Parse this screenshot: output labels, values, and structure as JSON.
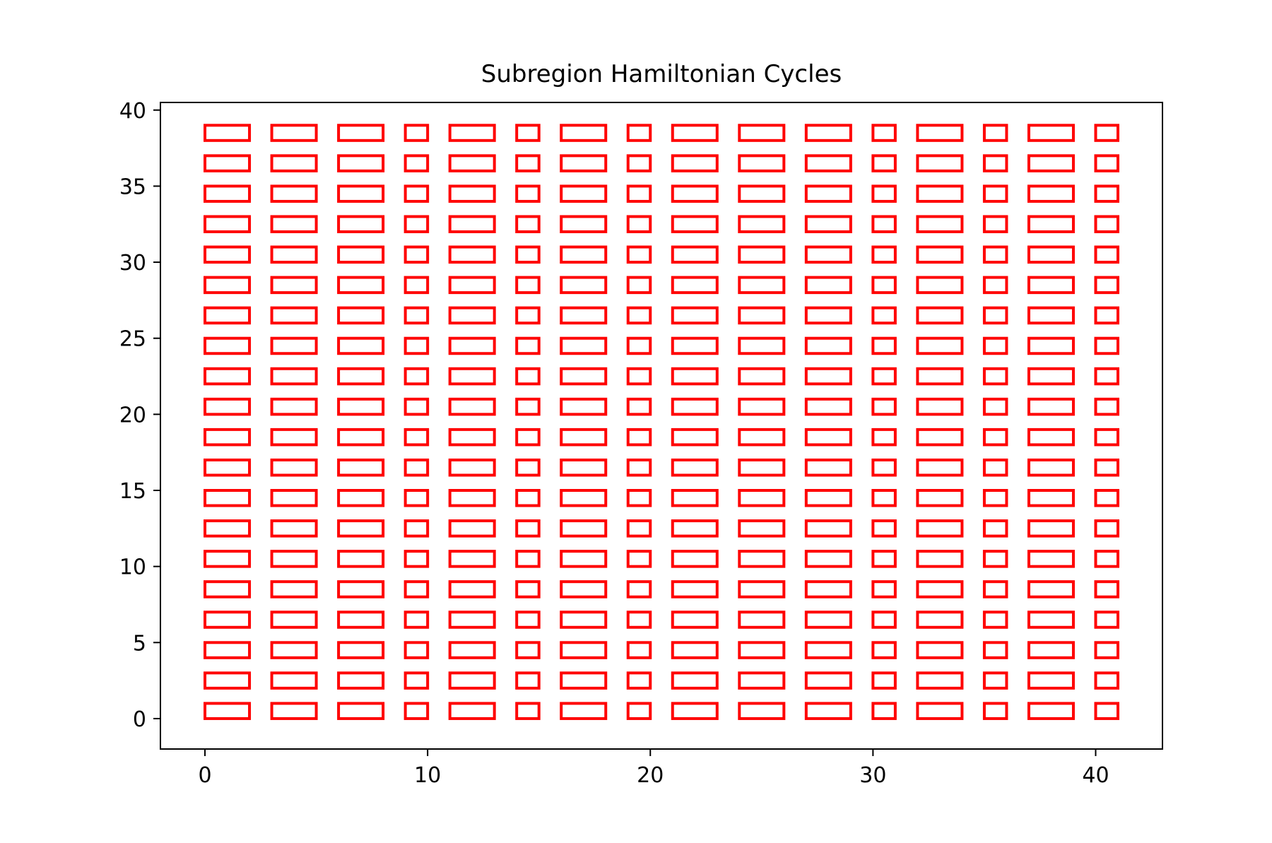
{
  "chart_data": {
    "type": "line",
    "title": "Subregion Hamiltonian Cycles",
    "xlabel": "",
    "ylabel": "",
    "xlim": [
      -2,
      43
    ],
    "ylim": [
      -2,
      40.5
    ],
    "xticks": [
      0,
      10,
      20,
      30,
      40
    ],
    "yticks": [
      0,
      5,
      10,
      15,
      20,
      25,
      30,
      35,
      40
    ],
    "grid": false,
    "line_color": "#ff0000",
    "description_of_marks": "Each closed red loop is a Hamiltonian cycle of one subregion, drawn as a rectangle outline with corners (x0,y0)-(x1,y1).",
    "columns": [
      {
        "x0": 0,
        "x1": 2
      },
      {
        "x0": 3,
        "x1": 5
      },
      {
        "x0": 6,
        "x1": 8
      },
      {
        "x0": 9,
        "x1": 10
      },
      {
        "x0": 11,
        "x1": 13
      },
      {
        "x0": 14,
        "x1": 15
      },
      {
        "x0": 16,
        "x1": 18
      },
      {
        "x0": 19,
        "x1": 20
      },
      {
        "x0": 21,
        "x1": 23
      },
      {
        "x0": 24,
        "x1": 26
      },
      {
        "x0": 27,
        "x1": 29
      },
      {
        "x0": 30,
        "x1": 31
      },
      {
        "x0": 32,
        "x1": 34
      },
      {
        "x0": 35,
        "x1": 36
      },
      {
        "x0": 37,
        "x1": 39
      },
      {
        "x0": 40,
        "x1": 41
      }
    ],
    "rows": [
      {
        "y0": 0,
        "y1": 1
      },
      {
        "y0": 2,
        "y1": 3
      },
      {
        "y0": 4,
        "y1": 5
      },
      {
        "y0": 6,
        "y1": 7
      },
      {
        "y0": 8,
        "y1": 9
      },
      {
        "y0": 10,
        "y1": 11
      },
      {
        "y0": 12,
        "y1": 13
      },
      {
        "y0": 14,
        "y1": 15
      },
      {
        "y0": 16,
        "y1": 17
      },
      {
        "y0": 18,
        "y1": 19
      },
      {
        "y0": 20,
        "y1": 21
      },
      {
        "y0": 22,
        "y1": 23
      },
      {
        "y0": 24,
        "y1": 25
      },
      {
        "y0": 26,
        "y1": 27
      },
      {
        "y0": 28,
        "y1": 29
      },
      {
        "y0": 30,
        "y1": 31
      },
      {
        "y0": 32,
        "y1": 33
      },
      {
        "y0": 34,
        "y1": 35
      },
      {
        "y0": 36,
        "y1": 37
      },
      {
        "y0": 38,
        "y1": 39
      }
    ]
  }
}
